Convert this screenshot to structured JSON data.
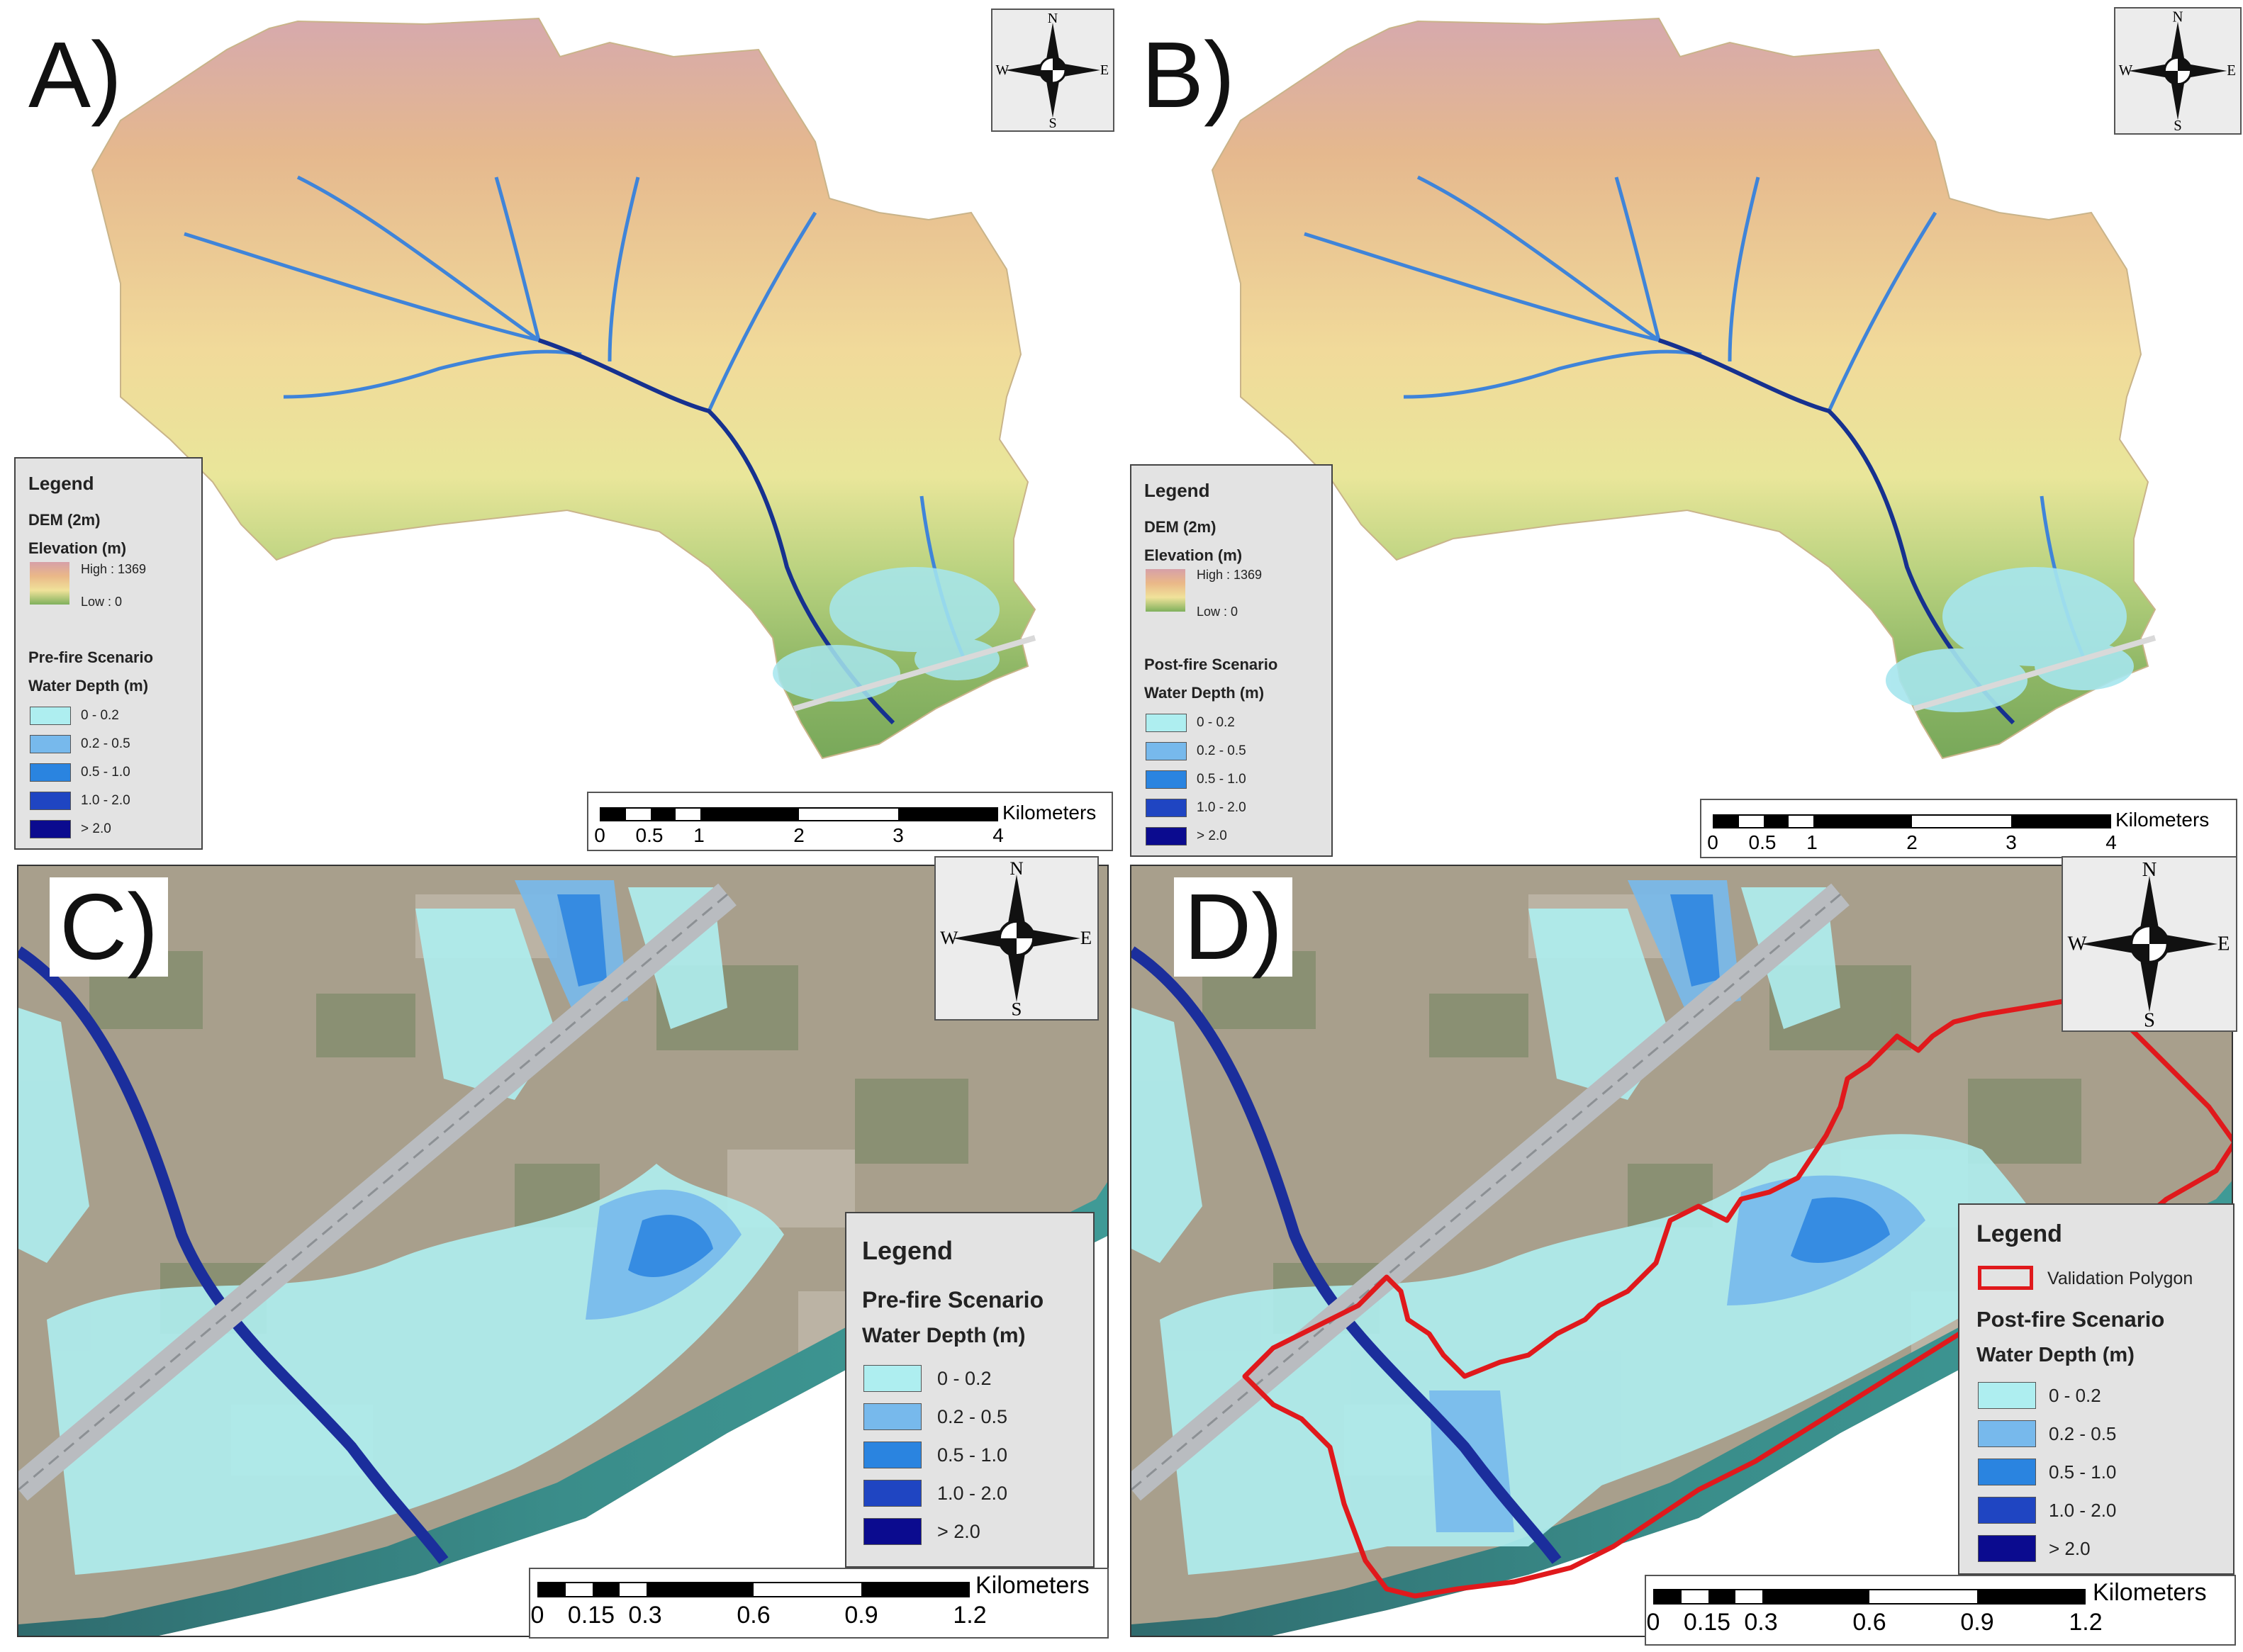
{
  "panels": {
    "a": {
      "label": "A)"
    },
    "b": {
      "label": "B)"
    },
    "c": {
      "label": "C)"
    },
    "d": {
      "label": "D)"
    }
  },
  "compass": {
    "n": "N",
    "s": "S",
    "e": "E",
    "w": "W"
  },
  "legend_a": {
    "title": "Legend",
    "dem_title": "DEM (2m)",
    "elevation_label": "Elevation (m)",
    "high": "High : 1369",
    "low": "Low : 0",
    "scenario": "Pre-fire Scenario",
    "depth_label": "Water Depth (m)",
    "classes": [
      "0 - 0.2",
      "0.2 - 0.5",
      "0.5 - 1.0",
      "1.0 - 2.0",
      "> 2.0"
    ]
  },
  "legend_b": {
    "title": "Legend",
    "dem_title": "DEM (2m)",
    "elevation_label": "Elevation (m)",
    "high": "High : 1369",
    "low": "Low : 0",
    "scenario": "Post-fire Scenario",
    "depth_label": "Water Depth (m)",
    "classes": [
      "0 - 0.2",
      "0.2 - 0.5",
      "0.5 - 1.0",
      "1.0 - 2.0",
      "> 2.0"
    ]
  },
  "legend_c": {
    "title": "Legend",
    "scenario": "Pre-fire Scenario",
    "depth_label": "Water Depth (m)",
    "classes": [
      "0 - 0.2",
      "0.2 - 0.5",
      "0.5 - 1.0",
      "1.0 - 2.0",
      "> 2.0"
    ]
  },
  "legend_d": {
    "title": "Legend",
    "polygon_label": "Validation Polygon",
    "scenario": "Post-fire Scenario",
    "depth_label": "Water Depth (m)",
    "classes": [
      "0 - 0.2",
      "0.2 - 0.5",
      "0.5 - 1.0",
      "1.0 - 2.0",
      "> 2.0"
    ]
  },
  "depth_colors": [
    "#aeeef0",
    "#77b9ec",
    "#2a84e0",
    "#1f45c2",
    "#0b0b8f"
  ],
  "polygon_color": "#e0191c",
  "scale_top": {
    "unit": "Kilometers",
    "ticks": [
      "0",
      "0.5",
      "1",
      "2",
      "3",
      "4"
    ]
  },
  "scale_bottom": {
    "unit": "Kilometers",
    "ticks": [
      "0",
      "0.15",
      "0.3",
      "0.6",
      "0.9",
      "1.2"
    ]
  }
}
